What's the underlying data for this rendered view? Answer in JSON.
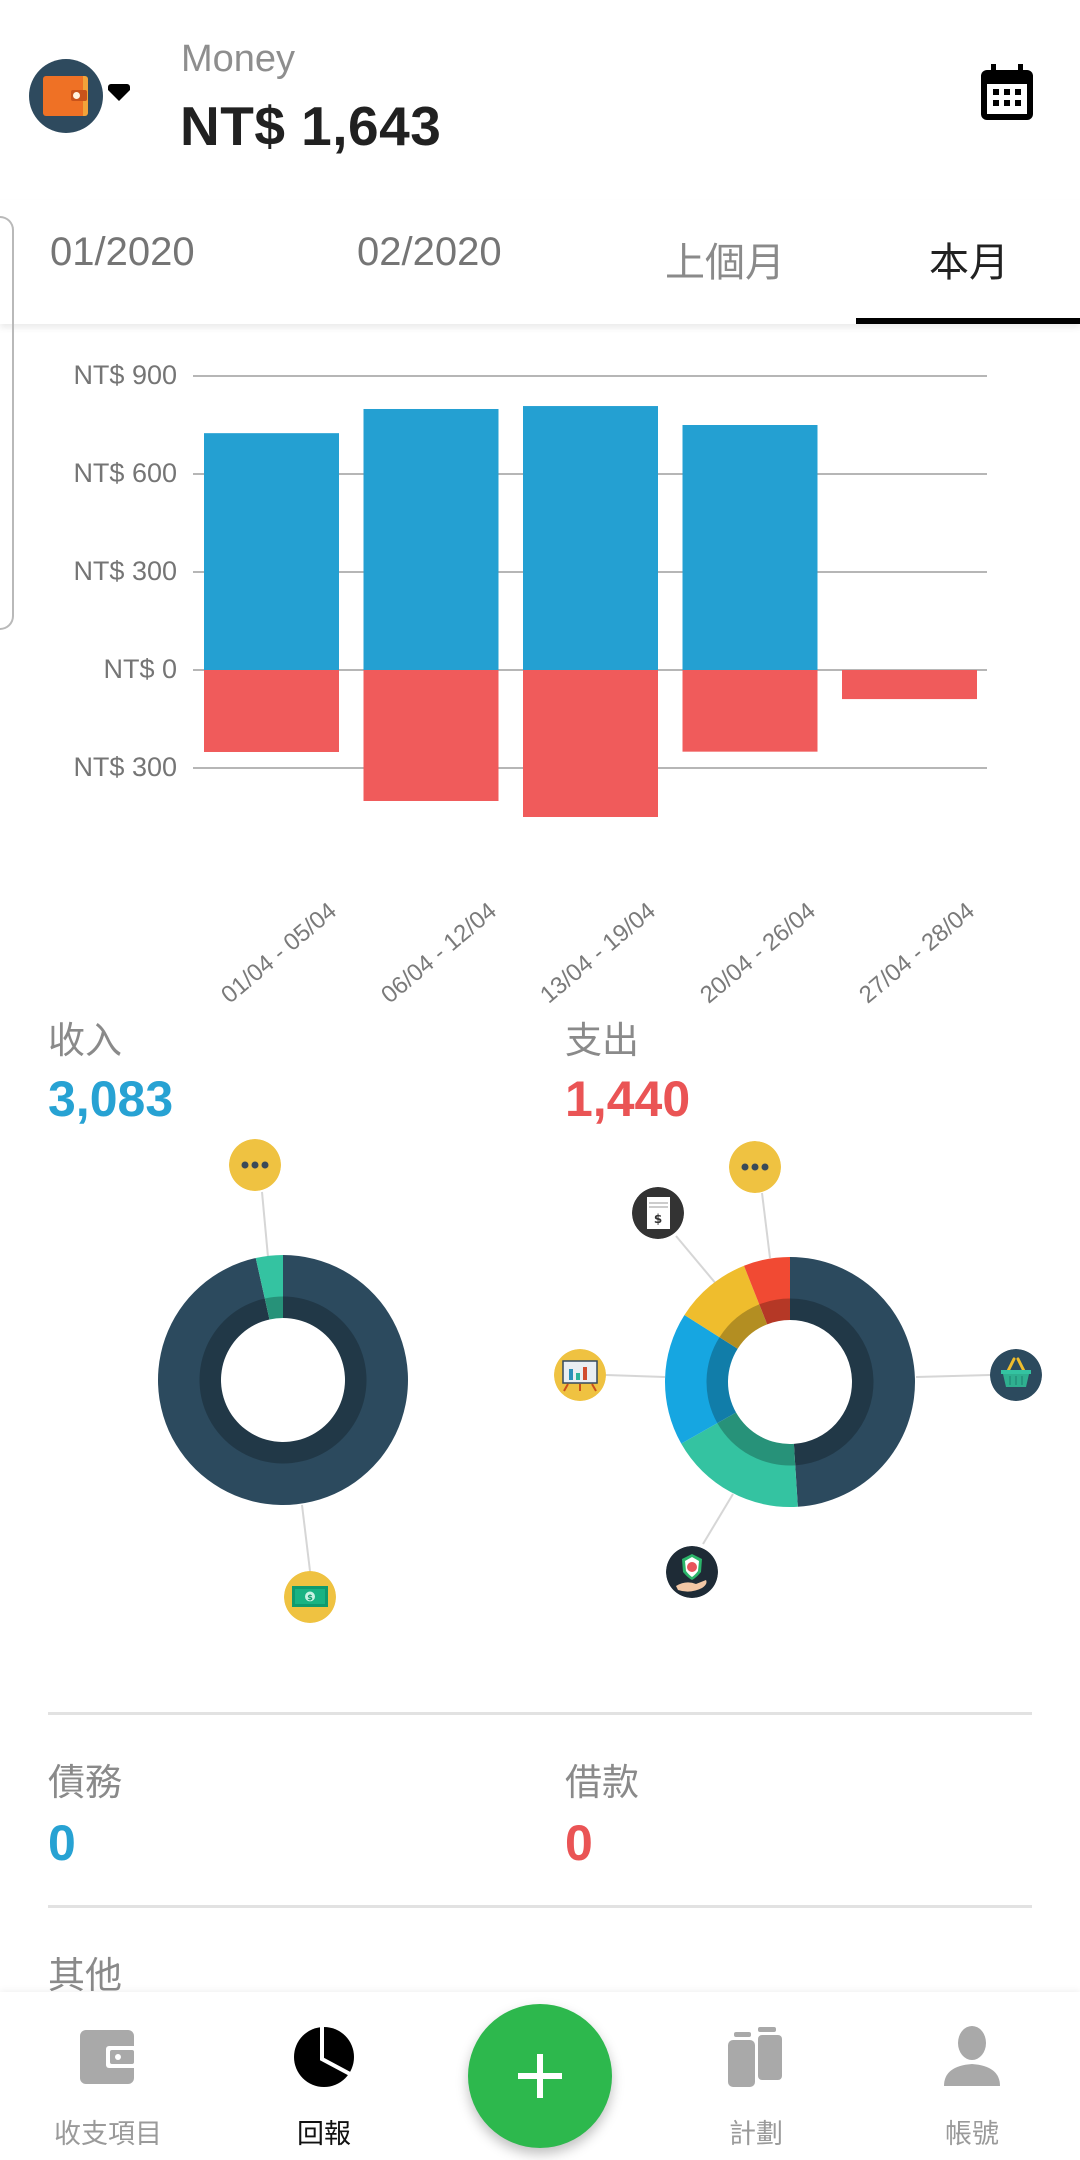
{
  "header": {
    "wallet_name": "Money",
    "balance": "NT$ 1,643",
    "wallet_icon": "wallet-icon",
    "calendar_icon": "calendar-icon"
  },
  "tabs": [
    {
      "label": "01/2020",
      "active": false
    },
    {
      "label": "02/2020",
      "active": false
    },
    {
      "label": "上個月",
      "active": false
    },
    {
      "label": "本月",
      "active": true
    }
  ],
  "chart_data": {
    "type": "bar",
    "title": "",
    "xlabel": "",
    "ylabel": "",
    "categories": [
      "01/04 - 05/04",
      "06/04 - 12/04",
      "13/04 - 19/04",
      "20/04 - 26/04",
      "27/04 - 28/04"
    ],
    "series": [
      {
        "name": "收入",
        "color": "#24a0d2",
        "values": [
          725,
          799,
          808,
          750,
          0
        ]
      },
      {
        "name": "支出",
        "color": "#f05b5b",
        "values": [
          -251,
          -401,
          -450,
          -250,
          -89
        ]
      }
    ],
    "y_ticks": [
      {
        "value": 900,
        "label": "NT$ 900"
      },
      {
        "value": 600,
        "label": "NT$ 600"
      },
      {
        "value": 300,
        "label": "NT$ 300"
      },
      {
        "value": 0,
        "label": "NT$ 0"
      },
      {
        "value": -300,
        "label": "NT$ 300"
      }
    ],
    "ylim": [
      -450,
      950
    ],
    "grid": true,
    "legend": "none"
  },
  "summary": {
    "income": {
      "label": "收入",
      "value": "3,083"
    },
    "expense": {
      "label": "支出",
      "value": "1,440"
    },
    "debt": {
      "label": "債務",
      "value": "0"
    },
    "loan": {
      "label": "借款",
      "value": "0"
    },
    "other": {
      "label": "其他"
    }
  },
  "donuts": {
    "income": {
      "segments": [
        {
          "category": "cash-icon",
          "share": 0.965,
          "color": "#2c4a5e"
        },
        {
          "category": "more-icon",
          "share": 0.035,
          "color": "#34c3a1"
        }
      ]
    },
    "expense": {
      "segments": [
        {
          "category": "basket-icon",
          "share": 0.49,
          "color": "#2c4a5e"
        },
        {
          "category": "insurance-icon",
          "share": 0.178,
          "color": "#34c3a1"
        },
        {
          "category": "presentation-icon",
          "share": 0.172,
          "color": "#16a6e1"
        },
        {
          "category": "bill-icon",
          "share": 0.1,
          "color": "#efbd2d"
        },
        {
          "category": "more-icon",
          "share": 0.06,
          "color": "#f14a33"
        }
      ]
    }
  },
  "bottom_nav": [
    {
      "label": "收支項目",
      "icon": "wallet-icon",
      "active": false
    },
    {
      "label": "回報",
      "icon": "pie-chart-icon",
      "active": true
    },
    {
      "label": "計劃",
      "icon": "jars-icon",
      "active": false
    },
    {
      "label": "帳號",
      "icon": "person-icon",
      "active": false
    }
  ],
  "fab": {
    "icon": "plus-icon"
  }
}
